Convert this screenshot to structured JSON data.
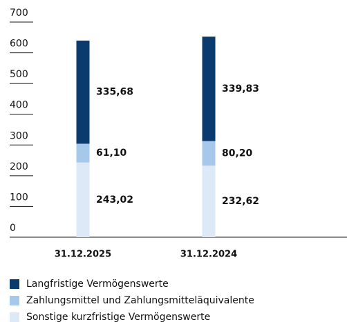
{
  "chart_data": {
    "type": "stacked_bar",
    "categories": [
      "31.12.2025",
      "31.12.2024"
    ],
    "series": [
      {
        "name": "Sonstige kurzfristige Vermögenswerte",
        "color": "#dde9f7",
        "values": [
          243.02,
          232.62
        ],
        "value_labels": [
          "243,02",
          "232,62"
        ]
      },
      {
        "name": "Zahlungsmittel und Zahlungsmitteläquivalente",
        "color": "#a6c8ea",
        "values": [
          61.1,
          80.2
        ],
        "value_labels": [
          "61,10",
          "80,20"
        ]
      },
      {
        "name": "Langfristige Vermögenswerte",
        "color": "#0a3a6e",
        "values": [
          335.68,
          339.83
        ],
        "value_labels": [
          "335,68",
          "339,83"
        ]
      }
    ],
    "legend_order": [
      2,
      1,
      0
    ],
    "ylim": [
      0,
      700
    ],
    "yticks": [
      0,
      100,
      200,
      300,
      400,
      500,
      600,
      700
    ]
  }
}
